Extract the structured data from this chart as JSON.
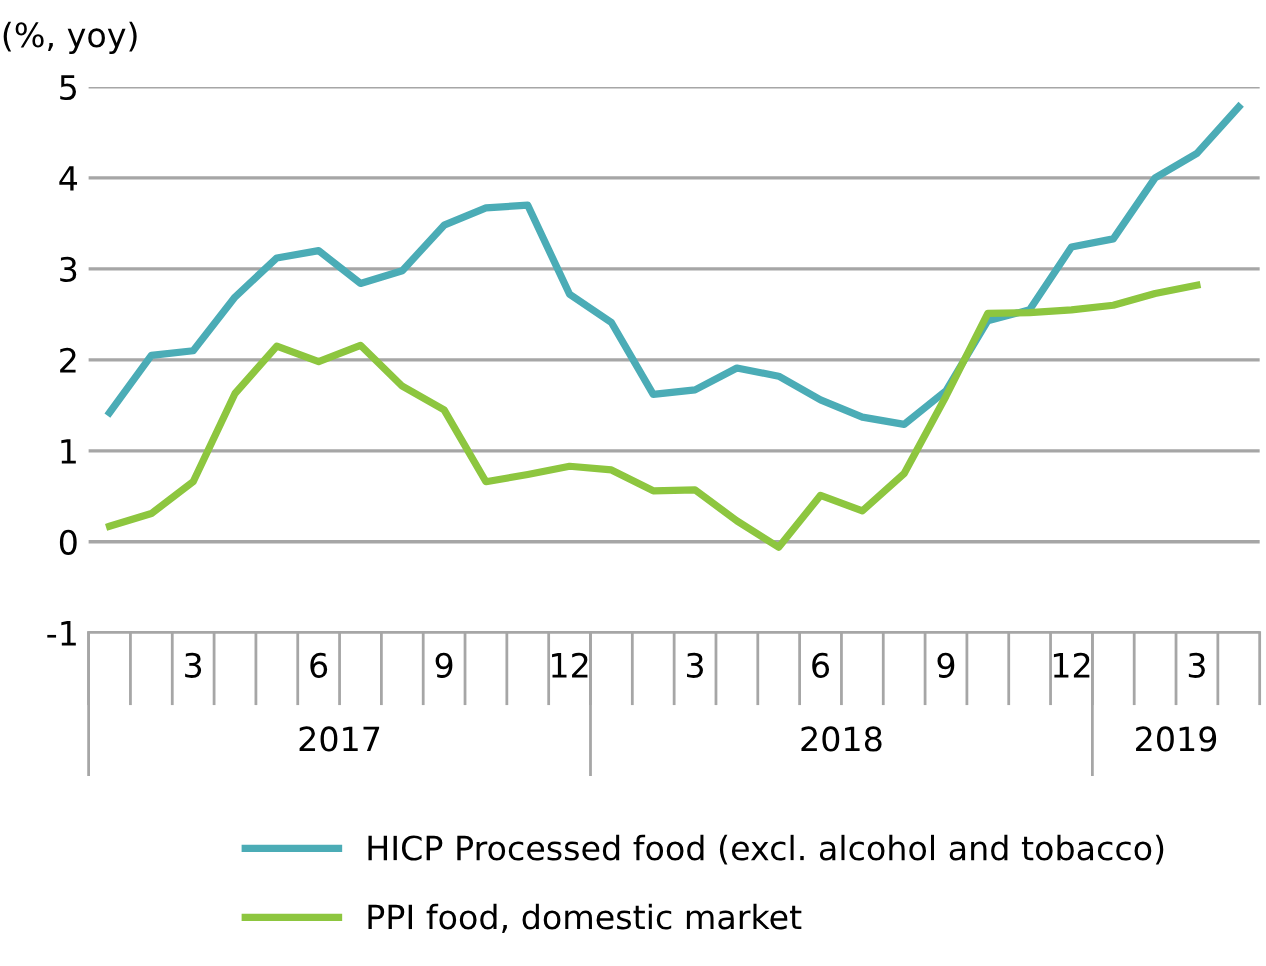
{
  "chart_data": {
    "type": "line",
    "ylabel": "(%, yoy)",
    "categories": [
      null,
      null,
      "3",
      null,
      null,
      "6",
      null,
      null,
      "9",
      null,
      null,
      "12",
      null,
      null,
      "3",
      null,
      null,
      "6",
      null,
      null,
      "9",
      null,
      null,
      "12",
      null,
      null,
      "3",
      null
    ],
    "annotations": [
      "2017",
      "2018",
      "2019"
    ],
    "series": [
      {
        "name": "HICP Processed food (excl. alcohol and tobacco)",
        "color": "#4bacb6",
        "values": [
          1.42,
          2.05,
          2.1,
          2.69,
          3.12,
          3.2,
          2.84,
          2.98,
          3.48,
          3.67,
          3.7,
          2.72,
          2.41,
          1.62,
          1.67,
          1.91,
          1.82,
          1.56,
          1.37,
          1.29,
          1.66,
          2.43,
          2.55,
          3.24,
          3.33,
          4.0,
          4.27,
          4.78
        ]
      },
      {
        "name": "PPI food, domestic market",
        "color": "#8dc63f",
        "values": [
          0.17,
          0.31,
          0.66,
          1.63,
          2.15,
          1.98,
          2.16,
          1.71,
          1.45,
          0.66,
          0.74,
          0.83,
          0.79,
          0.56,
          0.57,
          0.23,
          -0.06,
          0.51,
          0.34,
          0.75,
          1.6,
          2.51,
          2.52,
          2.55,
          2.6,
          2.73,
          2.82,
          null
        ]
      }
    ],
    "ylim": [
      -1,
      5
    ],
    "yticks": [
      -1,
      0,
      1,
      2,
      3,
      4,
      5
    ],
    "grid": "y",
    "legend": "bottom",
    "marker": "none",
    "line_style": "solid"
  }
}
